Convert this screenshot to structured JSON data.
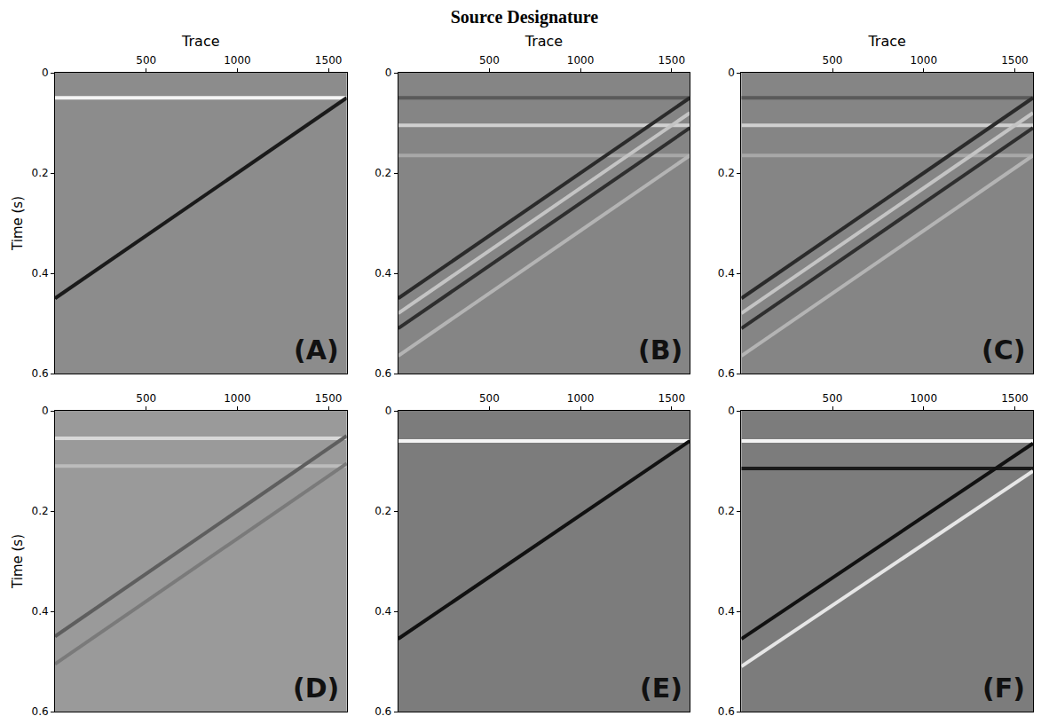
{
  "title": "Source Designature",
  "chart_data": [
    {
      "type": "line",
      "label": "(A)",
      "color": "#8c8c8c",
      "x_label": "Trace",
      "y_label": "Time (s)",
      "xlim": [
        0,
        1600
      ],
      "ylim": [
        0.6,
        0
      ],
      "xticks": [
        500,
        1000,
        1500
      ],
      "yticks": [
        0,
        0.2,
        0.4,
        0.6
      ],
      "grid": false,
      "series": [
        {
          "color": "#f4f4f4",
          "x": [
            0,
            1600
          ],
          "values": [
            0.05,
            0.05
          ]
        },
        {
          "color": "#1a1a1a",
          "x": [
            0,
            1600
          ],
          "values": [
            0.45,
            0.05
          ]
        }
      ]
    },
    {
      "type": "line",
      "label": "(B)",
      "color": "#858585",
      "x_label": "Trace",
      "xlim": [
        0,
        1600
      ],
      "ylim": [
        0.6,
        0
      ],
      "xticks": [
        500,
        1000,
        1500
      ],
      "yticks": [
        0,
        0.2,
        0.4,
        0.6
      ],
      "grid": false,
      "series": [
        {
          "color": "#5a5a5a",
          "x": [
            0,
            1600
          ],
          "values": [
            0.05,
            0.05
          ]
        },
        {
          "color": "#d0d0d0",
          "x": [
            0,
            1600
          ],
          "values": [
            0.105,
            0.105
          ]
        },
        {
          "color": "#a8a8a8",
          "x": [
            0,
            1600
          ],
          "values": [
            0.165,
            0.165
          ]
        },
        {
          "color": "#2a2a2a",
          "x": [
            0,
            1600
          ],
          "values": [
            0.45,
            0.05
          ]
        },
        {
          "color": "#c4c4c4",
          "x": [
            0,
            1600
          ],
          "values": [
            0.48,
            0.08
          ]
        },
        {
          "color": "#2e2e2e",
          "x": [
            0,
            1600
          ],
          "values": [
            0.51,
            0.11
          ]
        },
        {
          "color": "#b4b4b4",
          "x": [
            0,
            1600
          ],
          "values": [
            0.565,
            0.165
          ]
        }
      ]
    },
    {
      "type": "line",
      "label": "(C)",
      "color": "#858585",
      "x_label": "Trace",
      "xlim": [
        0,
        1600
      ],
      "ylim": [
        0.6,
        0
      ],
      "xticks": [
        500,
        1000,
        1500
      ],
      "yticks": [
        0,
        0.2,
        0.4,
        0.6
      ],
      "grid": false,
      "series": [
        {
          "color": "#5a5a5a",
          "x": [
            0,
            1600
          ],
          "values": [
            0.05,
            0.05
          ]
        },
        {
          "color": "#d0d0d0",
          "x": [
            0,
            1600
          ],
          "values": [
            0.105,
            0.105
          ]
        },
        {
          "color": "#a8a8a8",
          "x": [
            0,
            1600
          ],
          "values": [
            0.165,
            0.165
          ]
        },
        {
          "color": "#2a2a2a",
          "x": [
            0,
            1600
          ],
          "values": [
            0.45,
            0.05
          ]
        },
        {
          "color": "#c4c4c4",
          "x": [
            0,
            1600
          ],
          "values": [
            0.48,
            0.08
          ]
        },
        {
          "color": "#2e2e2e",
          "x": [
            0,
            1600
          ],
          "values": [
            0.51,
            0.11
          ]
        },
        {
          "color": "#b4b4b4",
          "x": [
            0,
            1600
          ],
          "values": [
            0.565,
            0.165
          ]
        }
      ]
    },
    {
      "type": "line",
      "label": "(D)",
      "color": "#9a9a9a",
      "y_label": "Time (s)",
      "xlim": [
        0,
        1600
      ],
      "ylim": [
        0.6,
        0
      ],
      "xticks": [
        500,
        1000,
        1500
      ],
      "yticks": [
        0,
        0.2,
        0.4,
        0.6
      ],
      "grid": false,
      "series": [
        {
          "color": "#d8d8d8",
          "x": [
            0,
            1600
          ],
          "values": [
            0.055,
            0.055
          ]
        },
        {
          "color": "#bcbcbc",
          "x": [
            0,
            1600
          ],
          "values": [
            0.11,
            0.11
          ]
        },
        {
          "color": "#5e5e5e",
          "x": [
            0,
            1600
          ],
          "values": [
            0.45,
            0.05
          ]
        },
        {
          "color": "#7a7a7a",
          "x": [
            0,
            1600
          ],
          "values": [
            0.505,
            0.105
          ]
        }
      ]
    },
    {
      "type": "line",
      "label": "(E)",
      "color": "#7c7c7c",
      "xlim": [
        0,
        1600
      ],
      "ylim": [
        0.6,
        0
      ],
      "xticks": [
        500,
        1000,
        1500
      ],
      "yticks": [
        0,
        0.2,
        0.4,
        0.6
      ],
      "grid": false,
      "series": [
        {
          "color": "#f4f4f4",
          "x": [
            0,
            1600
          ],
          "values": [
            0.06,
            0.06
          ]
        },
        {
          "color": "#111111",
          "x": [
            0,
            1600
          ],
          "values": [
            0.455,
            0.06
          ]
        }
      ]
    },
    {
      "type": "line",
      "label": "(F)",
      "color": "#7c7c7c",
      "xlim": [
        0,
        1600
      ],
      "ylim": [
        0.6,
        0
      ],
      "xticks": [
        500,
        1000,
        1500
      ],
      "yticks": [
        0,
        0.2,
        0.4,
        0.6
      ],
      "grid": false,
      "series": [
        {
          "color": "#f4f4f4",
          "x": [
            0,
            1600
          ],
          "values": [
            0.06,
            0.06
          ]
        },
        {
          "color": "#1a1a1a",
          "x": [
            0,
            1600
          ],
          "values": [
            0.115,
            0.115
          ]
        },
        {
          "color": "#111111",
          "x": [
            0,
            1600
          ],
          "values": [
            0.455,
            0.065
          ]
        },
        {
          "color": "#e6e6e6",
          "x": [
            0,
            1600
          ],
          "values": [
            0.51,
            0.12
          ]
        }
      ]
    }
  ]
}
